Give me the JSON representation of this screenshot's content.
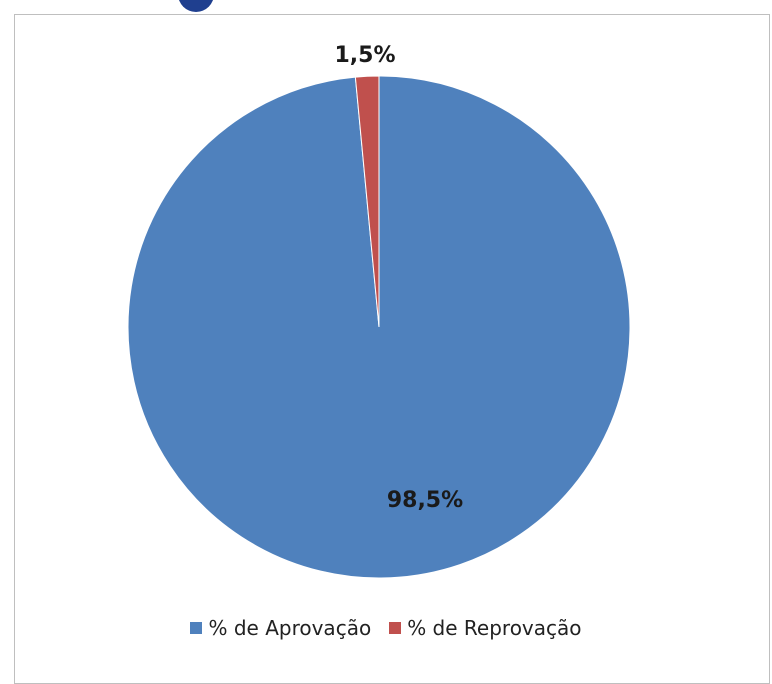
{
  "chart_data": {
    "type": "pie",
    "categories": [
      "% de Aprovação",
      "% de Reprovação"
    ],
    "values": [
      98.5,
      1.5
    ],
    "data_labels": [
      "98,5%",
      "1,5%"
    ],
    "colors": [
      "#4f81bd",
      "#c0504d"
    ],
    "legend_position": "bottom"
  },
  "legend": {
    "items": [
      {
        "label": "% de Aprovação",
        "color": "#4f81bd"
      },
      {
        "label": "% de Reprovação",
        "color": "#c0504d"
      }
    ]
  }
}
